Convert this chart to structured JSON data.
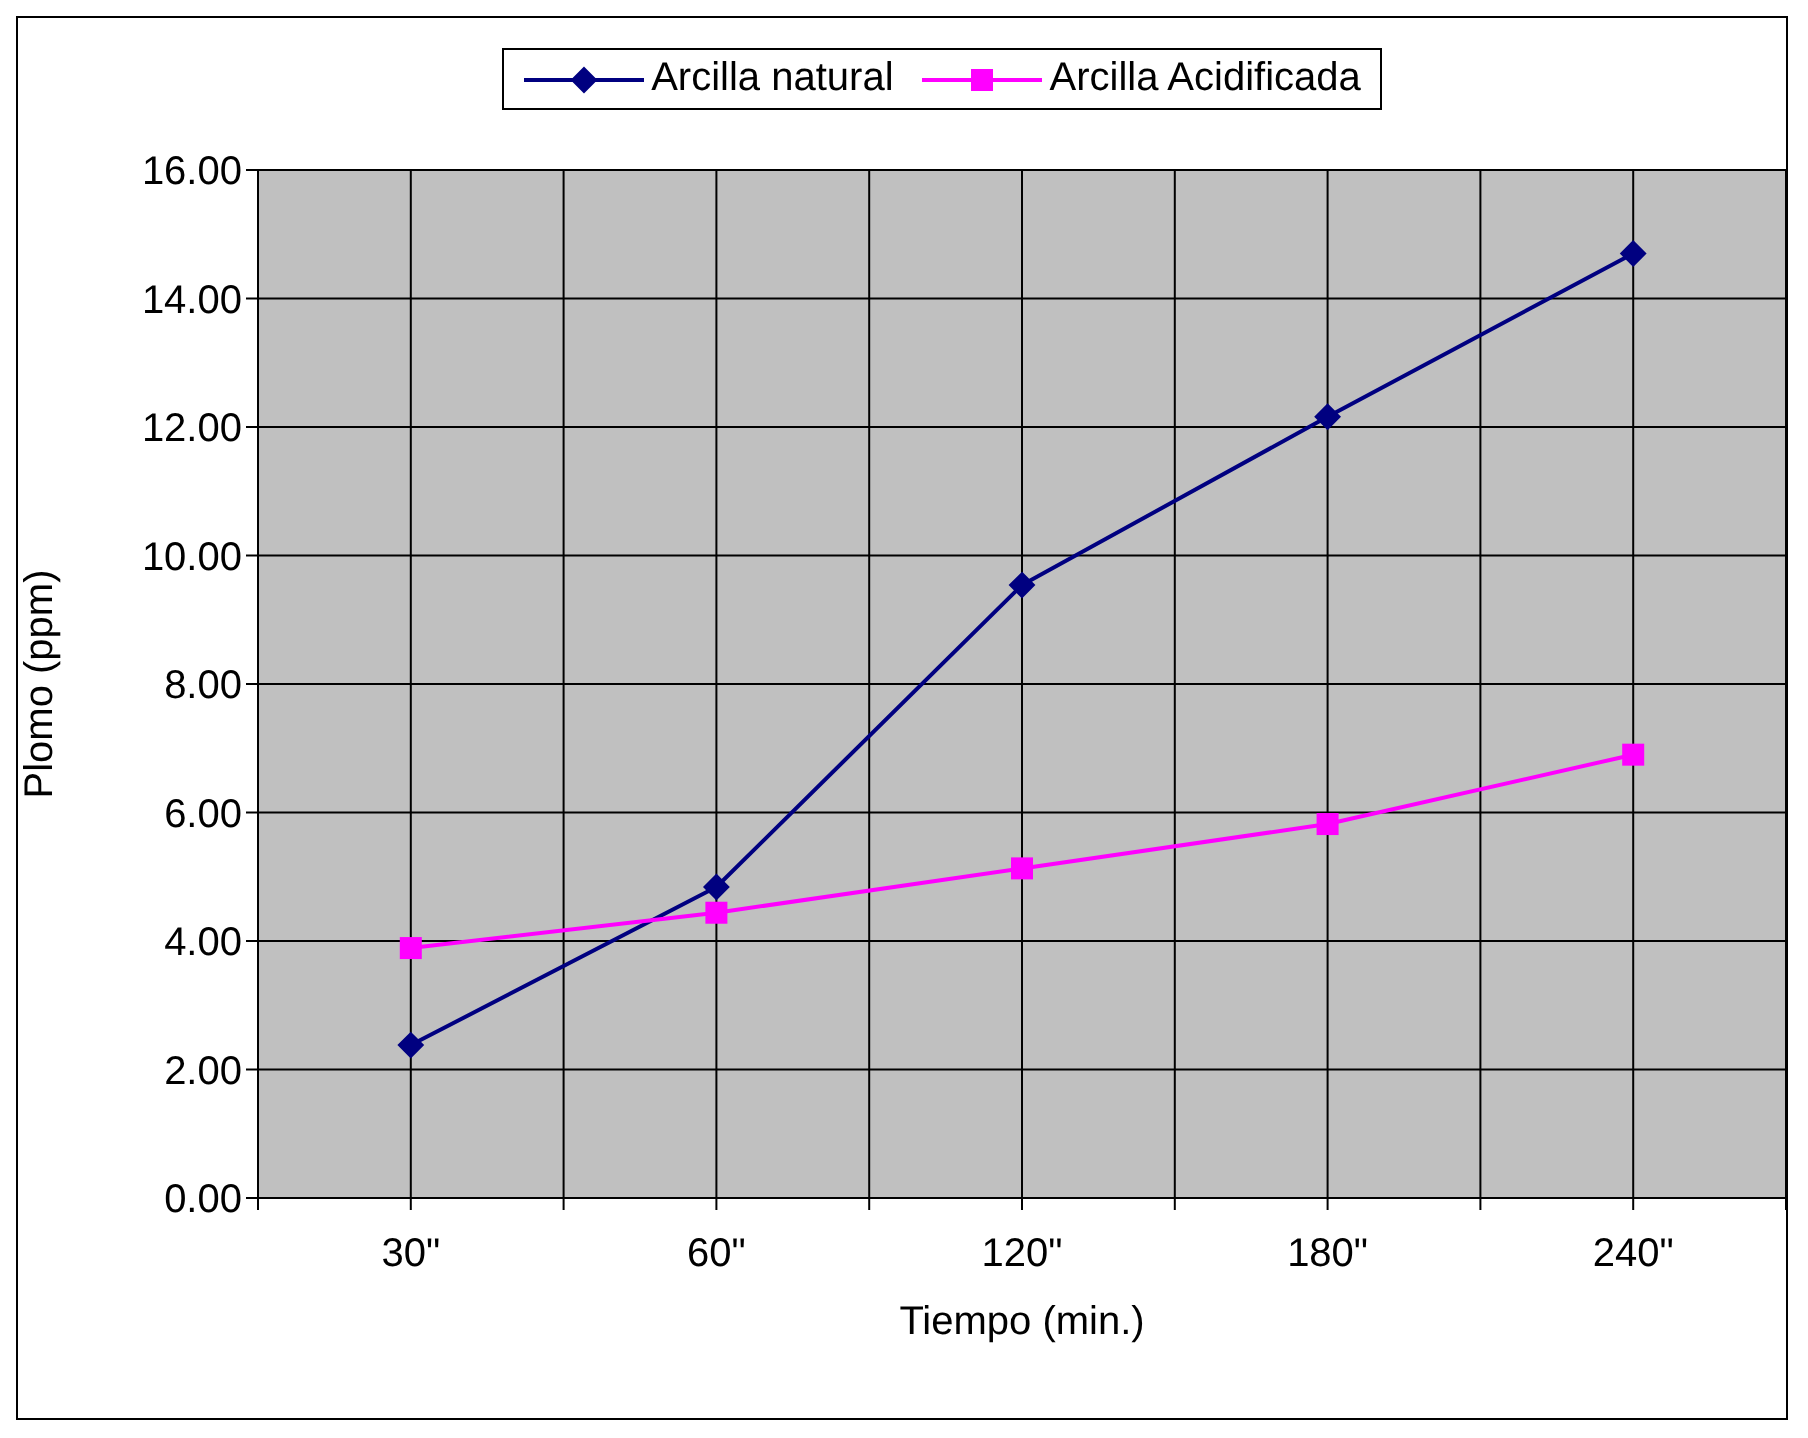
{
  "chart_data": {
    "type": "line",
    "xlabel": "Tiempo (min.)",
    "ylabel": "Plomo (ppm)",
    "categories": [
      "30\"",
      "60\"",
      "120\"",
      "180\"",
      "240\""
    ],
    "series": [
      {
        "name": "Arcilla natural",
        "color": "#000080",
        "marker": "diamond",
        "values": [
          2.38,
          4.84,
          9.54,
          12.16,
          14.7
        ]
      },
      {
        "name": "Arcilla Acidificada",
        "color": "#ff00ff",
        "marker": "square",
        "values": [
          3.89,
          4.44,
          5.13,
          5.82,
          6.9
        ]
      }
    ],
    "ylim": [
      0,
      16
    ],
    "yticks": [
      {
        "value": 0,
        "label": "0.00"
      },
      {
        "value": 2,
        "label": "2.00"
      },
      {
        "value": 4,
        "label": "4.00"
      },
      {
        "value": 6,
        "label": "6.00"
      },
      {
        "value": 8,
        "label": "8.00"
      },
      {
        "value": 10,
        "label": "10.00"
      },
      {
        "value": 12,
        "label": "12.00"
      },
      {
        "value": 14,
        "label": "14.00"
      },
      {
        "value": 16,
        "label": "16.00"
      }
    ],
    "grid": true,
    "legend": "top",
    "line_style": "solid"
  }
}
